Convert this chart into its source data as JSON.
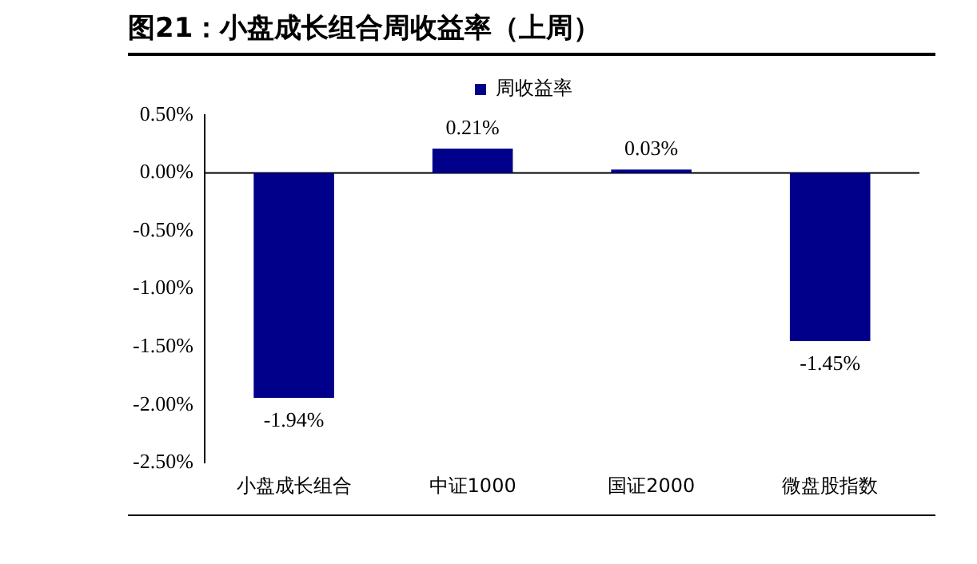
{
  "chart_data": {
    "type": "bar",
    "title": "图21：小盘成长组合周收益率（上周）",
    "categories": [
      "小盘成长组合",
      "中证1000",
      "国证2000",
      "微盘股指数"
    ],
    "series": [
      {
        "name": "周收益率",
        "color": "#00008b",
        "values": [
          -1.94,
          0.21,
          0.03,
          -1.45
        ]
      }
    ],
    "value_labels": [
      "-1.94%",
      "0.21%",
      "0.03%",
      "-1.45%"
    ],
    "ylim": [
      -2.5,
      0.5
    ],
    "yticks": [
      {
        "value": 0.5,
        "label": "0.50%"
      },
      {
        "value": 0,
        "label": "0.00%"
      },
      {
        "value": -0.5,
        "label": "-0.50%"
      },
      {
        "value": -1,
        "label": "-1.00%"
      },
      {
        "value": -1.5,
        "label": "-1.50%"
      },
      {
        "value": -2,
        "label": "-2.00%"
      },
      {
        "value": -2.5,
        "label": "-2.50%"
      }
    ],
    "ref_lines": [
      {
        "axis": "y",
        "value": 0,
        "color": "#000000"
      }
    ],
    "grid": false,
    "legend": "top"
  }
}
